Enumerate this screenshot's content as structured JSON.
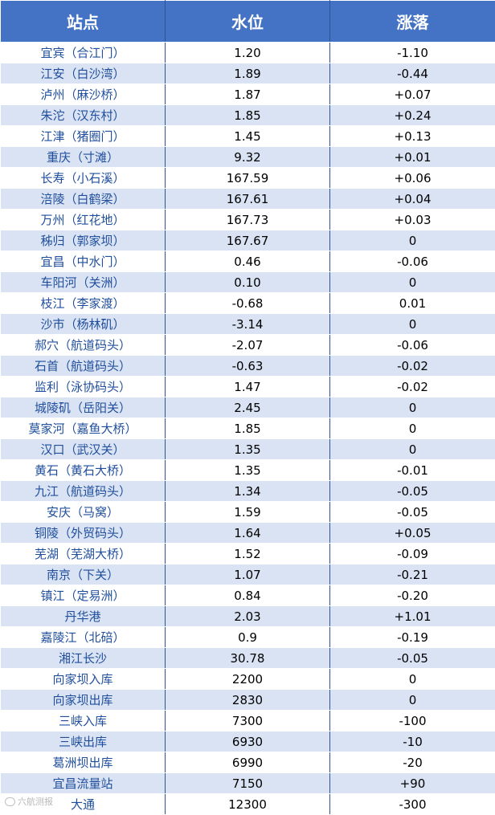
{
  "table": {
    "headers": [
      "站点",
      "水位",
      "涨落"
    ],
    "rows": [
      [
        "宜宾（合江门）",
        "1.20",
        "-1.10"
      ],
      [
        "江安（白沙湾）",
        "1.89",
        "-0.44"
      ],
      [
        "泸州（麻沙桥）",
        "1.87",
        "+0.07"
      ],
      [
        "朱沱（汉东村）",
        "1.85",
        "+0.24"
      ],
      [
        "江津（猪圈门）",
        "1.45",
        "+0.13"
      ],
      [
        "重庆（寸滩）",
        "9.32",
        "+0.01"
      ],
      [
        "长寿（小石溪）",
        "167.59",
        "+0.06"
      ],
      [
        "涪陵（白鹤梁）",
        "167.61",
        "+0.04"
      ],
      [
        "万州（红花地）",
        "167.73",
        "+0.03"
      ],
      [
        "秭归（郭家坝）",
        "167.67",
        "0"
      ],
      [
        "宜昌（中水门）",
        "0.46",
        "-0.06"
      ],
      [
        "车阳河（关洲）",
        "0.10",
        "0"
      ],
      [
        "枝江（李家渡）",
        "-0.68",
        "0.01"
      ],
      [
        "沙市（杨林矶）",
        "-3.14",
        "0"
      ],
      [
        "郝穴（航道码头）",
        "-2.07",
        "-0.06"
      ],
      [
        "石首（航道码头）",
        "-0.63",
        "-0.02"
      ],
      [
        "监利（泳协码头）",
        "1.47",
        "-0.02"
      ],
      [
        "城陵矶（岳阳关）",
        "2.45",
        "0"
      ],
      [
        "莫家河（嘉鱼大桥）",
        "1.85",
        "0"
      ],
      [
        "汉口（武汉关）",
        "1.35",
        "0"
      ],
      [
        "黄石（黄石大桥）",
        "1.35",
        "-0.01"
      ],
      [
        "九江（航道码头）",
        "1.34",
        "-0.05"
      ],
      [
        "安庆（马窝）",
        "1.59",
        "-0.05"
      ],
      [
        "铜陵（外贸码头）",
        "1.64",
        "+0.05"
      ],
      [
        "芜湖（芜湖大桥）",
        "1.52",
        "-0.09"
      ],
      [
        "南京（下关）",
        "1.07",
        "-0.21"
      ],
      [
        "镇江（定易洲）",
        "0.84",
        "-0.20"
      ],
      [
        "丹华港",
        "2.03",
        "+1.01"
      ],
      [
        "嘉陵江（北碚）",
        "0.9",
        "-0.19"
      ],
      [
        "湘江长沙",
        "30.78",
        "-0.05"
      ],
      [
        "向家坝入库",
        "2200",
        "0"
      ],
      [
        "向家坝出库",
        "2830",
        "0"
      ],
      [
        "三峡入库",
        "7300",
        "-100"
      ],
      [
        "三峡出库",
        "6930",
        "-10"
      ],
      [
        "葛洲坝出库",
        "6990",
        "-20"
      ],
      [
        "宜昌流量站",
        "7150",
        "+90"
      ],
      [
        "大通",
        "12300",
        "-300"
      ]
    ]
  },
  "watermark": {
    "text": "六航测报"
  }
}
